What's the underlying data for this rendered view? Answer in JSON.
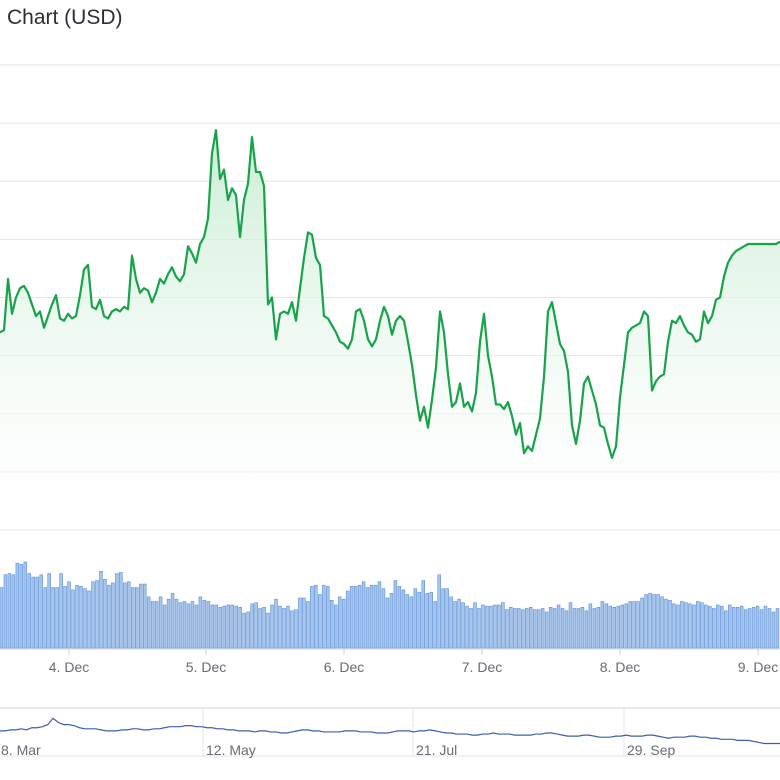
{
  "title": "Chart (USD)",
  "colors": {
    "line": "#16a34a",
    "area_top": "#c4ebd0",
    "volume_fill": "#a8c6ec",
    "volume_stroke": "#5b8fd6",
    "navigator": "#3b5fae",
    "grid": "#e6e6e6"
  },
  "chart_data": [
    {
      "type": "area",
      "grid": true,
      "x_ticks": [
        "4. Dec",
        "5. Dec",
        "6. Dec",
        "7. Dec",
        "8. Dec",
        "9. Dec"
      ],
      "x": [
        0,
        1,
        2,
        3,
        4,
        5,
        6,
        7,
        8,
        9,
        10,
        11,
        12,
        13,
        14,
        15,
        16,
        17,
        18,
        19,
        20,
        21,
        22,
        23,
        24,
        25,
        26,
        27,
        28,
        29,
        30,
        31,
        32,
        33,
        34,
        35,
        36,
        37,
        38,
        39,
        40,
        41,
        42,
        43,
        44,
        45,
        46,
        47,
        48,
        49,
        50,
        51,
        52,
        53,
        54,
        55,
        56,
        57,
        58,
        59,
        60,
        61,
        62,
        63,
        64,
        65,
        66,
        67,
        68,
        69,
        70,
        71,
        72,
        73,
        74,
        75,
        76,
        77,
        78,
        79,
        80,
        81,
        82,
        83,
        84,
        85,
        86,
        87,
        88,
        89,
        90,
        91,
        92,
        93,
        94,
        95,
        96,
        97,
        98,
        99,
        100,
        101,
        102,
        103,
        104,
        105,
        106,
        107,
        108,
        109,
        110,
        111,
        112,
        113,
        114,
        115,
        116,
        117,
        118,
        119,
        120,
        121,
        122,
        123,
        124,
        125,
        126,
        127,
        128,
        129,
        130,
        131,
        132,
        133,
        134,
        135,
        136,
        137,
        138,
        139,
        140,
        141,
        142,
        143,
        144,
        145,
        146,
        147,
        148,
        149,
        150,
        151,
        152,
        153,
        154,
        155,
        156,
        157,
        158,
        159,
        160,
        161,
        162,
        163,
        164,
        165,
        166,
        167,
        168,
        169,
        170,
        171,
        172,
        173,
        174,
        175,
        176,
        177,
        178,
        179,
        180,
        181,
        182,
        183,
        184,
        185,
        186,
        187,
        188,
        189,
        190,
        191,
        192,
        193,
        194,
        195
      ],
      "values": [
        55,
        56,
        78,
        63,
        70,
        74,
        75,
        72,
        67,
        62,
        64,
        57,
        62,
        67,
        71,
        61,
        60,
        63,
        61,
        62,
        71,
        82,
        84,
        66,
        65,
        69,
        62,
        61,
        64,
        65,
        64,
        66,
        65,
        88,
        78,
        72,
        74,
        73,
        68,
        72,
        78,
        76,
        80,
        83,
        79,
        77,
        80,
        92,
        89,
        85,
        93,
        96,
        104,
        132,
        142,
        121,
        125,
        112,
        117,
        114,
        96,
        112,
        119,
        139,
        124,
        124,
        118,
        67,
        70,
        52,
        63,
        64,
        63,
        68,
        60,
        74,
        87,
        98,
        97,
        87,
        84,
        62,
        61,
        58,
        55,
        51,
        50,
        48,
        52,
        64,
        65,
        60,
        52,
        49,
        52,
        60,
        66,
        62,
        54,
        60,
        62,
        60,
        51,
        41,
        28,
        17,
        23,
        14,
        26,
        40,
        64,
        55,
        37,
        23,
        25,
        33,
        23,
        25,
        21,
        29,
        51,
        63,
        45,
        36,
        24,
        24,
        22,
        25,
        19,
        11,
        16,
        3,
        6,
        4,
        11,
        18,
        36,
        64,
        68,
        59,
        50,
        47,
        38,
        15,
        7,
        17,
        33,
        36,
        30,
        24,
        15,
        14,
        7,
        1,
        6,
        27,
        41,
        55,
        57,
        58,
        59,
        64,
        62,
        30,
        34,
        36,
        37,
        51,
        60,
        59,
        62,
        58,
        55,
        54,
        51,
        52,
        64,
        59,
        62,
        69,
        70,
        79,
        85,
        88,
        90,
        91,
        92,
        93,
        93,
        93,
        93,
        93,
        93,
        93,
        93,
        94
      ],
      "ylim": [
        -30,
        170
      ]
    },
    {
      "type": "bar",
      "series": [
        {
          "values": [
            52,
            63,
            64,
            63,
            73,
            72,
            74,
            64,
            61,
            61,
            63,
            52,
            64,
            52,
            52,
            64,
            53,
            57,
            50,
            54,
            53,
            51,
            49,
            57,
            58,
            66,
            59,
            54,
            56,
            64,
            65,
            56,
            57,
            52,
            52,
            55,
            55,
            44,
            40,
            40,
            44,
            37,
            42,
            47,
            42,
            39,
            40,
            38,
            40,
            37,
            44,
            41,
            40,
            37,
            37,
            35,
            36,
            37,
            37,
            36,
            35,
            30,
            31,
            38,
            39,
            34,
            35,
            30,
            37,
            42,
            36,
            34,
            36,
            32,
            33,
            43,
            43,
            40,
            53,
            54,
            46,
            54,
            53,
            41,
            37,
            44,
            42,
            49,
            53,
            53,
            54,
            57,
            52,
            54,
            54,
            57,
            51,
            43,
            47,
            58,
            53,
            50,
            46,
            44,
            51,
            48,
            58,
            47,
            48,
            40,
            63,
            51,
            51,
            44,
            40,
            42,
            39,
            36,
            34,
            39,
            34,
            37,
            36,
            36,
            37,
            37,
            39,
            33,
            35,
            34,
            34,
            33,
            34,
            35,
            33,
            33,
            34,
            31,
            35,
            34,
            37,
            34,
            32,
            39,
            34,
            34,
            35,
            32,
            38,
            34,
            35,
            40,
            38,
            36,
            35,
            36,
            37,
            38,
            40,
            40,
            40,
            43,
            46,
            47,
            46,
            46,
            44,
            42,
            41,
            38,
            37,
            40,
            39,
            38,
            37,
            40,
            39,
            37,
            36,
            34,
            37,
            36,
            32,
            37,
            35,
            35,
            36,
            33,
            34,
            35,
            36,
            33,
            36,
            34,
            31,
            34
          ]
        }
      ],
      "ylim": [
        0,
        80
      ]
    },
    {
      "type": "line",
      "x_ticks": [
        "8. Mar",
        "12. May",
        "21. Jul",
        "29. Sep"
      ],
      "values": [
        22,
        22,
        23,
        23,
        24,
        23,
        25,
        25,
        26,
        28,
        34,
        30,
        28,
        28,
        27,
        25,
        24,
        24,
        24,
        23,
        22,
        22,
        22,
        23,
        23,
        24,
        24,
        23,
        23,
        24,
        24,
        25,
        26,
        26,
        26,
        27,
        27,
        26,
        26,
        25,
        25,
        24,
        24,
        23,
        23,
        22,
        22,
        22,
        21,
        22,
        22,
        21,
        21,
        20,
        20,
        21,
        22,
        23,
        23,
        22,
        22,
        21,
        21,
        21,
        21,
        22,
        22,
        22,
        21,
        21,
        21,
        20,
        20,
        20,
        21,
        22,
        22,
        22,
        21,
        22,
        22,
        23,
        22,
        21,
        20,
        20,
        19,
        19,
        19,
        18,
        18,
        19,
        19,
        20,
        19,
        19,
        19,
        18,
        18,
        18,
        18,
        19,
        19,
        20,
        20,
        19,
        18,
        17,
        17,
        17,
        18,
        18,
        17,
        16,
        16,
        16,
        17,
        17,
        18,
        17,
        17,
        17,
        18,
        18,
        17,
        16,
        15,
        16,
        16,
        16,
        17,
        17,
        16,
        16,
        15,
        15,
        14,
        14,
        14,
        13,
        13,
        13,
        12,
        11,
        10,
        10,
        10,
        10
      ],
      "ylim": [
        0,
        40
      ]
    }
  ]
}
